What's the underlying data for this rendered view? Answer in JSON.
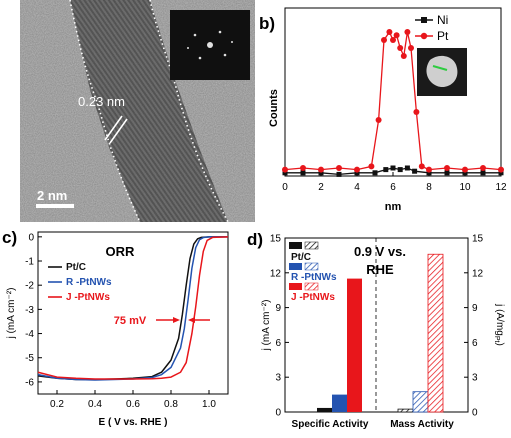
{
  "panel_a": {
    "label": "a)",
    "lattice_spacing": "0.23 nm",
    "scale_bar": "2 nm"
  },
  "panel_b": {
    "label": "b)",
    "ylabel": "Counts",
    "xlabel": "nm",
    "x_ticks": [
      "0",
      "2",
      "4",
      "6",
      "8",
      "10",
      "12"
    ],
    "legend": [
      "Ni",
      "Pt"
    ],
    "colors": {
      "Ni": "#111111",
      "Pt": "#e8161b"
    }
  },
  "panel_c": {
    "label": "c)",
    "title": "ORR",
    "ylabel": "j (mA cm⁻²)",
    "xlabel": "E ( V vs. RHE )",
    "x_ticks": [
      "0.2",
      "0.4",
      "0.6",
      "0.8",
      "1.0"
    ],
    "y_ticks": [
      "0",
      "-1",
      "-2",
      "-3",
      "-4",
      "-5",
      "-6"
    ],
    "legend": [
      "Pt/C",
      "R -PtNWs",
      "J -PtNWs"
    ],
    "annotation": "75 mV",
    "colors": {
      "ptc": "#111111",
      "r": "#2453b0",
      "j": "#e8161b"
    }
  },
  "panel_d": {
    "label": "d)",
    "title_line1": "0.9 V vs.",
    "title_line2": "RHE",
    "ylabel_left": "j (mA cm⁻²)",
    "ylabel_right": "j (A/mg",
    "ylabel_right_sub": "Pt",
    "ylabel_right_end": ")",
    "y_ticks": [
      "0",
      "3",
      "6",
      "9",
      "12",
      "15"
    ],
    "categories": [
      "Specific Activity",
      "Mass Activity"
    ],
    "legend": [
      "Pt/C",
      "R -PtNWs",
      "J -PtNWs"
    ]
  },
  "chart_data": [
    {
      "type": "line",
      "id": "b",
      "xlabel": "nm",
      "ylabel": "Counts",
      "xlim": [
        0,
        12
      ],
      "series": [
        {
          "name": "Ni",
          "x": [
            0,
            1,
            2,
            3,
            4,
            5,
            5.6,
            6,
            6.4,
            6.8,
            7.2,
            8,
            9,
            10,
            11,
            12
          ],
          "values": [
            0.02,
            0.02,
            0.02,
            0.01,
            0.02,
            0.02,
            0.04,
            0.05,
            0.04,
            0.05,
            0.03,
            0.02,
            0.02,
            0.02,
            0.02,
            0.02
          ]
        },
        {
          "name": "Pt",
          "x": [
            0,
            1,
            2,
            3,
            4,
            4.8,
            5.2,
            5.5,
            5.8,
            6.0,
            6.2,
            6.4,
            6.6,
            6.8,
            7.0,
            7.3,
            7.6,
            8,
            9,
            10,
            11,
            12
          ],
          "values": [
            0.04,
            0.05,
            0.04,
            0.05,
            0.04,
            0.06,
            0.35,
            0.85,
            0.9,
            0.85,
            0.88,
            0.8,
            0.75,
            0.9,
            0.8,
            0.4,
            0.06,
            0.04,
            0.05,
            0.04,
            0.05,
            0.04
          ]
        }
      ]
    },
    {
      "type": "line",
      "id": "c",
      "title": "ORR",
      "xlabel": "E ( V vs. RHE )",
      "ylabel": "j (mA cm⁻²)",
      "xlim": [
        0.1,
        1.1
      ],
      "ylim": [
        -6.5,
        0.2
      ],
      "series": [
        {
          "name": "Pt/C",
          "x": [
            0.1,
            0.2,
            0.3,
            0.4,
            0.5,
            0.6,
            0.7,
            0.75,
            0.8,
            0.84,
            0.86,
            0.88,
            0.9,
            0.92,
            0.94,
            0.96,
            1.0,
            1.1
          ],
          "values": [
            -5.75,
            -5.85,
            -5.9,
            -5.9,
            -5.88,
            -5.85,
            -5.78,
            -5.6,
            -5.1,
            -4.2,
            -3.2,
            -2.0,
            -0.9,
            -0.3,
            -0.08,
            -0.02,
            0,
            0
          ]
        },
        {
          "name": "R -PtNWs",
          "x": [
            0.1,
            0.2,
            0.3,
            0.4,
            0.5,
            0.6,
            0.7,
            0.75,
            0.8,
            0.85,
            0.87,
            0.89,
            0.91,
            0.93,
            0.95,
            0.97,
            1.0,
            1.1
          ],
          "values": [
            -5.7,
            -5.85,
            -5.9,
            -5.92,
            -5.9,
            -5.88,
            -5.82,
            -5.7,
            -5.4,
            -4.6,
            -3.8,
            -2.6,
            -1.3,
            -0.45,
            -0.12,
            -0.03,
            0,
            0
          ]
        },
        {
          "name": "J -PtNWs",
          "x": [
            0.1,
            0.2,
            0.3,
            0.4,
            0.5,
            0.6,
            0.7,
            0.75,
            0.8,
            0.85,
            0.88,
            0.91,
            0.93,
            0.95,
            0.97,
            0.99,
            1.02,
            1.1
          ],
          "values": [
            -5.6,
            -5.8,
            -5.85,
            -5.88,
            -5.88,
            -5.88,
            -5.87,
            -5.85,
            -5.8,
            -5.6,
            -5.2,
            -4.0,
            -2.9,
            -1.6,
            -0.6,
            -0.15,
            -0.02,
            0
          ]
        }
      ]
    },
    {
      "type": "bar",
      "id": "d",
      "title": "0.9 V vs. RHE",
      "categories": [
        "Specific Activity",
        "Mass Activity"
      ],
      "ylim": [
        0,
        15
      ],
      "series": [
        {
          "name": "Pt/C",
          "values": [
            0.35,
            0.25
          ]
        },
        {
          "name": "R -PtNWs",
          "values": [
            1.5,
            1.75
          ]
        },
        {
          "name": "J -PtNWs",
          "values": [
            11.5,
            13.6
          ]
        }
      ]
    }
  ]
}
